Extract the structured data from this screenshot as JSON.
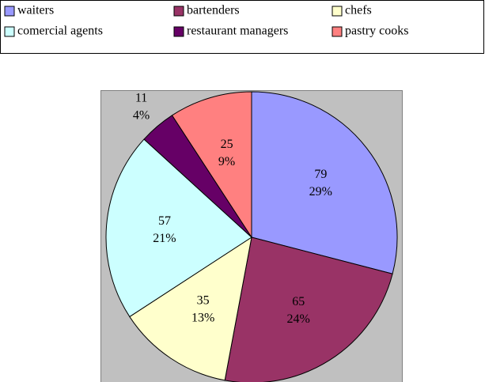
{
  "chart_data": {
    "type": "pie",
    "categories": [
      "waiters",
      "bartenders",
      "chefs",
      "comercial agents",
      "restaurant managers",
      "pastry cooks"
    ],
    "values": [
      79,
      65,
      35,
      57,
      11,
      25
    ],
    "percent_labels": [
      "29%",
      "24%",
      "13%",
      "21%",
      "4%",
      "9%"
    ],
    "colors": [
      "#9999ff",
      "#993366",
      "#ffffcc",
      "#ccffff",
      "#660066",
      "#ff8080"
    ],
    "legend": "top"
  }
}
